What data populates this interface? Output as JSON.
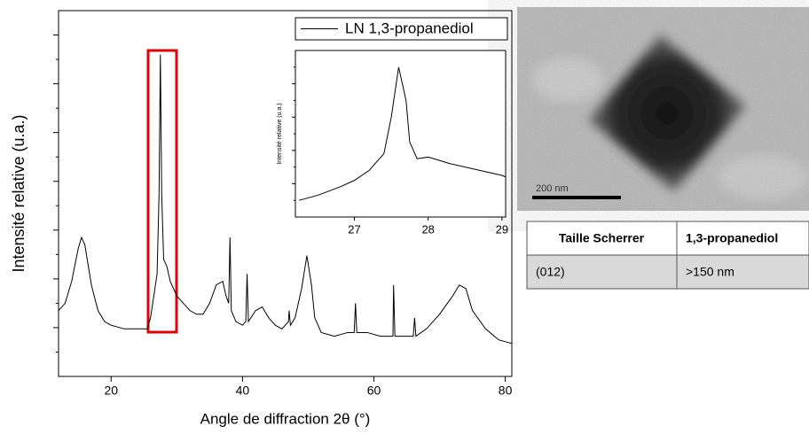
{
  "chart_data": [
    {
      "type": "line",
      "xlabel": "Angle de diffraction 2θ (°)",
      "ylabel": "Intensité relative (u.a.)",
      "xlim": [
        12,
        81
      ],
      "xticks": [
        20,
        40,
        60,
        80
      ],
      "ylim": [
        0,
        100
      ],
      "legend": "upper right",
      "x": [
        12,
        13,
        14,
        15,
        15.5,
        16,
        17,
        18,
        19,
        20,
        22,
        24,
        25.5,
        26,
        26.5,
        27,
        27.3,
        27.5,
        27.7,
        28,
        28.5,
        29,
        30,
        31,
        32,
        33,
        34,
        35,
        36,
        37,
        37.5,
        37.9,
        38.1,
        38.3,
        39,
        40,
        40.5,
        40.7,
        40.9,
        42,
        43,
        44,
        45,
        46,
        47,
        47.1,
        47.3,
        48,
        49,
        49.8,
        50.5,
        51,
        52,
        54,
        56,
        57,
        57.2,
        57.4,
        59,
        61,
        62,
        62.9,
        63,
        63.2,
        65,
        66,
        66.2,
        66.4,
        68,
        70,
        72,
        73,
        74,
        75,
        77,
        79,
        81
      ],
      "series": [
        {
          "name": "LN 1,3-propanediol",
          "color": "#000000",
          "values": [
            18,
            20,
            26,
            35,
            38,
            36,
            25,
            18,
            15,
            14,
            13,
            13,
            13,
            16,
            22,
            28,
            50,
            88,
            50,
            32,
            30,
            26,
            22,
            20,
            18,
            17,
            17,
            20,
            25,
            26,
            22,
            20,
            38,
            18,
            15,
            14,
            15,
            28,
            15,
            18,
            19,
            16,
            14,
            13,
            15,
            18,
            14,
            16,
            24,
            33,
            25,
            16,
            12,
            11,
            12,
            12,
            20,
            12,
            12,
            11,
            11,
            11,
            25,
            11,
            11,
            11,
            16,
            11,
            13,
            17,
            22,
            25,
            24,
            18,
            13,
            10,
            9
          ]
        }
      ]
    },
    {
      "type": "line",
      "ylabel": "Intensité relative (u.a.)",
      "xlim": [
        26.2,
        29.05
      ],
      "xticks": [
        27,
        28,
        29
      ],
      "ylim": [
        0,
        100
      ],
      "x": [
        26.25,
        26.5,
        26.8,
        27,
        27.2,
        27.4,
        27.5,
        27.6,
        27.7,
        27.75,
        27.85,
        28,
        28.3,
        28.6,
        29,
        29.05
      ],
      "series": [
        {
          "color": "#000000",
          "values": [
            10,
            13,
            18,
            22,
            28,
            38,
            60,
            90,
            70,
            45,
            35,
            36,
            32,
            29,
            25,
            24
          ]
        }
      ]
    }
  ],
  "image": {
    "scale_bar": "200 nm"
  },
  "table": {
    "header": [
      "Taille Scherrer",
      "1,3-propanediol"
    ],
    "rows": [
      [
        "(012)",
        ">150 nm"
      ]
    ]
  }
}
